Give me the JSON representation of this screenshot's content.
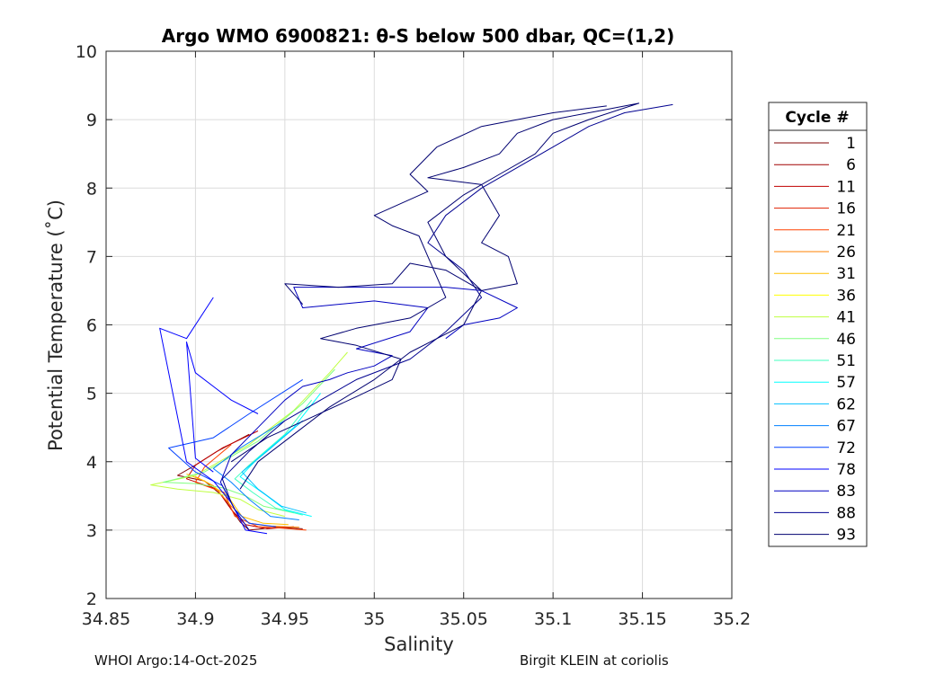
{
  "chart_data": {
    "type": "line",
    "title": "Argo WMO 6900821: θ-S below 500 dbar,  QC=(1,2)",
    "xlabel": "Salinity",
    "ylabel": "Potential Temperature (˚C)",
    "xlim": [
      34.85,
      35.2
    ],
    "ylim": [
      2,
      10
    ],
    "xticks": [
      "34.85",
      "34.9",
      "34.95",
      "35",
      "35.05",
      "35.1",
      "35.15",
      "35.2"
    ],
    "yticks": [
      "2",
      "3",
      "4",
      "5",
      "6",
      "7",
      "8",
      "9",
      "10"
    ],
    "grid": true,
    "legend": {
      "title": "Cycle #",
      "placement": "right",
      "entries": [
        {
          "label": "1",
          "color": "#800000"
        },
        {
          "label": "6",
          "color": "#a00000"
        },
        {
          "label": "11",
          "color": "#c00000"
        },
        {
          "label": "16",
          "color": "#e02000"
        },
        {
          "label": "21",
          "color": "#ff4000"
        },
        {
          "label": "26",
          "color": "#ff8000"
        },
        {
          "label": "31",
          "color": "#ffbf00"
        },
        {
          "label": "36",
          "color": "#ffff00"
        },
        {
          "label": "41",
          "color": "#bfff40"
        },
        {
          "label": "46",
          "color": "#80ff80"
        },
        {
          "label": "51",
          "color": "#40ffbf"
        },
        {
          "label": "57",
          "color": "#00ffff"
        },
        {
          "label": "62",
          "color": "#00bfff"
        },
        {
          "label": "67",
          "color": "#0080ff"
        },
        {
          "label": "72",
          "color": "#0040ff"
        },
        {
          "label": "78",
          "color": "#0000ff"
        },
        {
          "label": "83",
          "color": "#0000c0"
        },
        {
          "label": "88",
          "color": "#000090"
        },
        {
          "label": "93",
          "color": "#000070"
        }
      ]
    },
    "series": [
      {
        "color": "#800000",
        "points": [
          [
            34.96,
            3.02
          ],
          [
            34.945,
            3.04
          ],
          [
            34.93,
            3.0
          ],
          [
            34.925,
            3.12
          ],
          [
            34.915,
            3.5
          ],
          [
            34.905,
            3.72
          ],
          [
            34.89,
            3.8
          ],
          [
            34.9,
            3.95
          ],
          [
            34.912,
            4.15
          ],
          [
            34.93,
            4.4
          ]
        ]
      },
      {
        "color": "#c00000",
        "points": [
          [
            34.955,
            3.05
          ],
          [
            34.94,
            3.02
          ],
          [
            34.928,
            3.08
          ],
          [
            34.92,
            3.3
          ],
          [
            34.912,
            3.6
          ],
          [
            34.895,
            3.75
          ],
          [
            34.9,
            3.95
          ],
          [
            34.915,
            4.2
          ],
          [
            34.935,
            4.45
          ]
        ]
      },
      {
        "color": "#ff4000",
        "points": [
          [
            34.962,
            3.0
          ],
          [
            34.948,
            3.03
          ],
          [
            34.935,
            3.05
          ],
          [
            34.922,
            3.2
          ],
          [
            34.916,
            3.55
          ],
          [
            34.9,
            3.7
          ],
          [
            34.905,
            3.92
          ],
          [
            34.92,
            4.25
          ]
        ]
      },
      {
        "color": "#ff8000",
        "points": [
          [
            34.958,
            3.04
          ],
          [
            34.94,
            3.06
          ],
          [
            34.93,
            3.1
          ],
          [
            34.92,
            3.35
          ],
          [
            34.91,
            3.65
          ],
          [
            34.9,
            3.78
          ]
        ]
      },
      {
        "color": "#ffbf00",
        "points": [
          [
            34.952,
            3.08
          ],
          [
            34.938,
            3.1
          ],
          [
            34.926,
            3.2
          ],
          [
            34.918,
            3.5
          ],
          [
            34.905,
            3.72
          ],
          [
            34.895,
            3.82
          ]
        ]
      },
      {
        "color": "#bfff40",
        "points": [
          [
            34.95,
            3.2
          ],
          [
            34.935,
            3.3
          ],
          [
            34.925,
            3.45
          ],
          [
            34.91,
            3.55
          ],
          [
            34.89,
            3.6
          ],
          [
            34.875,
            3.66
          ],
          [
            34.9,
            3.8
          ],
          [
            34.93,
            4.25
          ],
          [
            34.955,
            4.75
          ],
          [
            34.975,
            5.3
          ],
          [
            34.985,
            5.6
          ]
        ]
      },
      {
        "color": "#80ff80",
        "points": [
          [
            34.955,
            3.25
          ],
          [
            34.938,
            3.35
          ],
          [
            34.928,
            3.5
          ],
          [
            34.915,
            3.62
          ],
          [
            34.9,
            3.68
          ],
          [
            34.882,
            3.7
          ],
          [
            34.905,
            3.85
          ],
          [
            34.935,
            4.3
          ],
          [
            34.96,
            4.85
          ],
          [
            34.978,
            5.35
          ]
        ]
      },
      {
        "color": "#40ffbf",
        "points": [
          [
            34.96,
            3.22
          ],
          [
            34.945,
            3.32
          ],
          [
            34.932,
            3.55
          ],
          [
            34.922,
            3.75
          ],
          [
            34.93,
            3.95
          ],
          [
            34.95,
            4.4
          ],
          [
            34.965,
            4.9
          ]
        ]
      },
      {
        "color": "#00ffff",
        "points": [
          [
            34.965,
            3.2
          ],
          [
            34.95,
            3.3
          ],
          [
            34.94,
            3.5
          ],
          [
            34.925,
            3.78
          ],
          [
            34.935,
            4.05
          ],
          [
            34.955,
            4.5
          ],
          [
            34.97,
            5.0
          ]
        ]
      },
      {
        "color": "#00bfff",
        "points": [
          [
            34.962,
            3.25
          ],
          [
            34.948,
            3.35
          ],
          [
            34.935,
            3.6
          ],
          [
            34.926,
            3.85
          ],
          [
            34.94,
            4.15
          ],
          [
            34.96,
            4.6
          ]
        ]
      },
      {
        "color": "#0080ff",
        "points": [
          [
            34.958,
            3.15
          ],
          [
            34.942,
            3.2
          ],
          [
            34.93,
            3.45
          ],
          [
            34.92,
            3.7
          ],
          [
            34.91,
            3.9
          ],
          [
            34.925,
            4.2
          ],
          [
            34.95,
            4.6
          ]
        ]
      },
      {
        "color": "#0040ff",
        "points": [
          [
            34.945,
            3.05
          ],
          [
            34.93,
            3.1
          ],
          [
            34.922,
            3.3
          ],
          [
            34.915,
            3.65
          ],
          [
            34.9,
            3.85
          ],
          [
            34.885,
            4.2
          ],
          [
            34.91,
            4.35
          ],
          [
            34.93,
            4.7
          ],
          [
            34.96,
            5.2
          ]
        ]
      },
      {
        "color": "#0000ff",
        "points": [
          [
            34.94,
            2.95
          ],
          [
            34.928,
            3.0
          ],
          [
            34.92,
            3.4
          ],
          [
            34.91,
            3.72
          ],
          [
            34.895,
            4.0
          ],
          [
            34.88,
            5.95
          ],
          [
            34.895,
            5.8
          ],
          [
            34.91,
            6.4
          ]
        ]
      },
      {
        "color": "#0000ff",
        "points": [
          [
            34.91,
            3.85
          ],
          [
            34.9,
            4.05
          ],
          [
            34.895,
            5.75
          ],
          [
            34.9,
            5.3
          ],
          [
            34.91,
            5.1
          ],
          [
            34.92,
            4.9
          ],
          [
            34.935,
            4.7
          ]
        ]
      },
      {
        "color": "#0000c0",
        "points": [
          [
            34.93,
            3.0
          ],
          [
            34.922,
            3.3
          ],
          [
            34.914,
            3.7
          ],
          [
            34.92,
            4.1
          ],
          [
            34.935,
            4.5
          ],
          [
            34.95,
            4.9
          ],
          [
            34.96,
            5.1
          ],
          [
            34.975,
            5.2
          ],
          [
            34.985,
            5.3
          ],
          [
            35.0,
            5.4
          ],
          [
            35.01,
            5.55
          ],
          [
            34.99,
            5.65
          ],
          [
            35.02,
            5.9
          ],
          [
            35.03,
            6.25
          ],
          [
            35.0,
            6.35
          ],
          [
            34.96,
            6.25
          ],
          [
            34.955,
            6.55
          ],
          [
            35.005,
            6.55
          ],
          [
            35.04,
            6.55
          ],
          [
            35.06,
            6.5
          ],
          [
            35.08,
            6.25
          ],
          [
            35.07,
            6.1
          ],
          [
            35.05,
            6.0
          ],
          [
            35.04,
            5.8
          ]
        ]
      },
      {
        "color": "#000090",
        "points": [
          [
            34.92,
            3.4
          ],
          [
            34.915,
            3.75
          ],
          [
            34.93,
            4.15
          ],
          [
            34.95,
            4.6
          ],
          [
            34.97,
            4.9
          ],
          [
            34.99,
            5.2
          ],
          [
            35.02,
            5.5
          ],
          [
            35.04,
            5.9
          ],
          [
            35.06,
            6.4
          ],
          [
            35.05,
            6.8
          ],
          [
            35.03,
            7.2
          ],
          [
            35.04,
            7.6
          ],
          [
            35.06,
            8.0
          ],
          [
            35.08,
            8.3
          ],
          [
            35.1,
            8.6
          ],
          [
            35.12,
            8.9
          ],
          [
            35.14,
            9.1
          ],
          [
            35.167,
            9.22
          ]
        ]
      },
      {
        "color": "#000070",
        "points": [
          [
            34.925,
            3.6
          ],
          [
            34.935,
            4.0
          ],
          [
            34.955,
            4.4
          ],
          [
            34.975,
            4.8
          ],
          [
            35.0,
            5.2
          ],
          [
            35.02,
            5.6
          ],
          [
            35.05,
            6.0
          ],
          [
            35.06,
            6.5
          ],
          [
            35.04,
            7.0
          ],
          [
            35.03,
            7.5
          ],
          [
            35.05,
            7.9
          ],
          [
            35.07,
            8.2
          ],
          [
            35.09,
            8.5
          ],
          [
            35.1,
            8.8
          ],
          [
            35.12,
            9.0
          ],
          [
            35.148,
            9.24
          ],
          [
            35.13,
            9.15
          ],
          [
            35.1,
            9.0
          ],
          [
            35.08,
            8.8
          ],
          [
            35.07,
            8.5
          ],
          [
            35.05,
            8.3
          ],
          [
            35.03,
            8.15
          ],
          [
            35.06,
            8.05
          ],
          [
            35.07,
            7.6
          ],
          [
            35.06,
            7.2
          ],
          [
            35.075,
            7.0
          ],
          [
            35.08,
            6.6
          ],
          [
            35.06,
            6.5
          ],
          [
            35.04,
            6.8
          ],
          [
            35.02,
            6.9
          ],
          [
            35.01,
            6.6
          ],
          [
            34.98,
            6.55
          ],
          [
            34.95,
            6.6
          ],
          [
            34.96,
            6.3
          ]
        ]
      },
      {
        "color": "#000070",
        "points": [
          [
            34.92,
            4.0
          ],
          [
            34.94,
            4.35
          ],
          [
            34.965,
            4.65
          ],
          [
            34.99,
            4.95
          ],
          [
            35.01,
            5.2
          ],
          [
            35.015,
            5.5
          ],
          [
            34.99,
            5.7
          ],
          [
            34.97,
            5.8
          ],
          [
            34.99,
            5.95
          ],
          [
            35.02,
            6.1
          ],
          [
            35.04,
            6.4
          ],
          [
            35.035,
            6.7
          ],
          [
            35.03,
            7.0
          ],
          [
            35.025,
            7.3
          ],
          [
            35.01,
            7.45
          ],
          [
            35.0,
            7.6
          ],
          [
            35.03,
            7.95
          ],
          [
            35.02,
            8.2
          ],
          [
            35.035,
            8.6
          ],
          [
            35.06,
            8.9
          ],
          [
            35.1,
            9.1
          ],
          [
            35.13,
            9.2
          ]
        ]
      }
    ]
  },
  "footer": {
    "left": "WHOI Argo:14-Oct-2025",
    "right": "Birgit KLEIN at coriolis"
  }
}
